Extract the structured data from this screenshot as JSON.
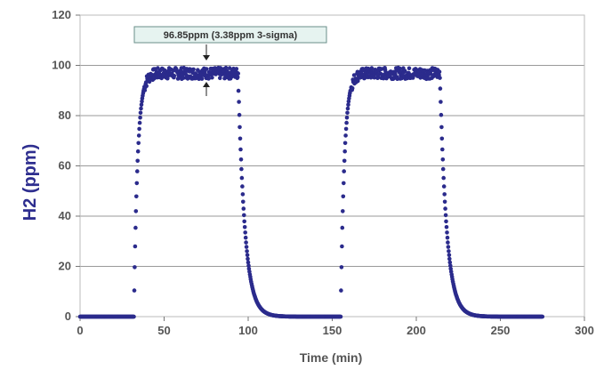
{
  "chart_data": {
    "type": "scatter",
    "title": "",
    "xlabel": "Time (min)",
    "ylabel": "H2 (ppm)",
    "xlim": [
      0,
      300
    ],
    "ylim": [
      0,
      120
    ],
    "xticks": [
      0,
      50,
      100,
      150,
      200,
      250,
      300
    ],
    "yticks": [
      0,
      20,
      40,
      60,
      80,
      100,
      120
    ],
    "grid": "horizontal",
    "legend": "none",
    "marker_color": "#2b2b8c",
    "annotation": "96.85ppm (3.38ppm 3-sigma)",
    "series": [
      {
        "steps": [
          {
            "t_on": 32,
            "t_off": 94
          },
          {
            "t_on": 155,
            "t_off": 214
          }
        ],
        "baseline": 0,
        "plateau": 96.85,
        "x_end": 275
      }
    ]
  }
}
